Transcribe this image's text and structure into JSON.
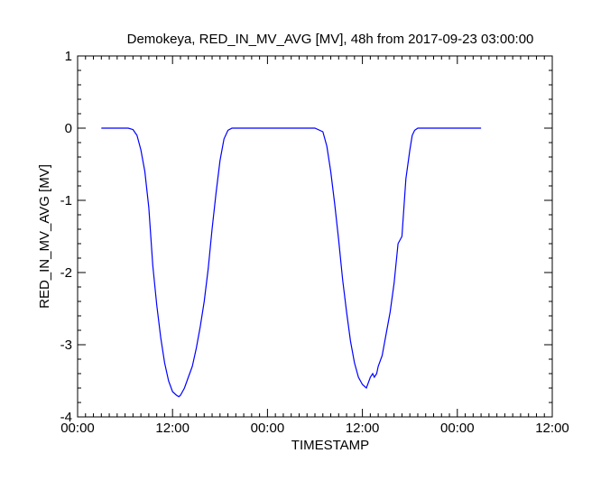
{
  "chart_data": {
    "type": "line",
    "title": "Demokeya, RED_IN_MV_AVG [MV], 48h from  2017-09-23 03:00:00",
    "xlabel": "TIMESTAMP",
    "ylabel": "RED_IN_MV_AVG [MV]",
    "x_unit": "hours",
    "xlim": [
      0,
      60
    ],
    "ylim": [
      -4,
      1
    ],
    "x_ticks": [
      0,
      12,
      24,
      36,
      48,
      60
    ],
    "x_tick_labels": [
      "00:00",
      "12:00",
      "00:00",
      "12:00",
      "00:00",
      "12:00"
    ],
    "y_ticks": [
      -4,
      -3,
      -2,
      -1,
      0,
      1
    ],
    "y_tick_labels": [
      "-4",
      "-3",
      "-2",
      "-1",
      "0",
      "1"
    ],
    "grid": false,
    "colors": {
      "series": "#0000ff",
      "axis": "#000000"
    },
    "series": [
      {
        "x": [
          3.0,
          6.4,
          7.0,
          7.5,
          8.0,
          8.5,
          9.0,
          9.5,
          10.0,
          10.5,
          11.0,
          11.5,
          12.0,
          12.5,
          12.8,
          13.0,
          13.5,
          14.0,
          14.5,
          15.0,
          15.5,
          16.0,
          16.5,
          17.0,
          17.5,
          18.0,
          18.5,
          19.0,
          19.5,
          20.0,
          21.0,
          24.0,
          27.0,
          30.0,
          31.0,
          31.5,
          32.0,
          32.5,
          33.0,
          33.5,
          34.0,
          34.5,
          35.0,
          35.5,
          36.0,
          36.5,
          37.0,
          37.3,
          37.5,
          37.8,
          38.0,
          38.5,
          39.0,
          39.5,
          40.0,
          40.5,
          41.0,
          41.5,
          42.0,
          42.3,
          42.6,
          43.0,
          43.5,
          44.0,
          45.0,
          48.0,
          51.0
        ],
        "y": [
          0,
          0,
          -0.02,
          -0.1,
          -0.3,
          -0.6,
          -1.1,
          -1.9,
          -2.45,
          -2.9,
          -3.25,
          -3.5,
          -3.65,
          -3.7,
          -3.72,
          -3.7,
          -3.6,
          -3.45,
          -3.3,
          -3.05,
          -2.75,
          -2.4,
          -1.95,
          -1.4,
          -0.9,
          -0.45,
          -0.15,
          -0.03,
          0,
          0,
          0,
          0,
          0,
          0,
          -0.05,
          -0.25,
          -0.6,
          -1.05,
          -1.55,
          -2.1,
          -2.55,
          -2.95,
          -3.25,
          -3.45,
          -3.55,
          -3.6,
          -3.45,
          -3.4,
          -3.45,
          -3.4,
          -3.3,
          -3.15,
          -2.85,
          -2.55,
          -2.15,
          -1.6,
          -1.5,
          -0.7,
          -0.3,
          -0.1,
          -0.03,
          0,
          0,
          0,
          0,
          0,
          0
        ]
      }
    ]
  }
}
